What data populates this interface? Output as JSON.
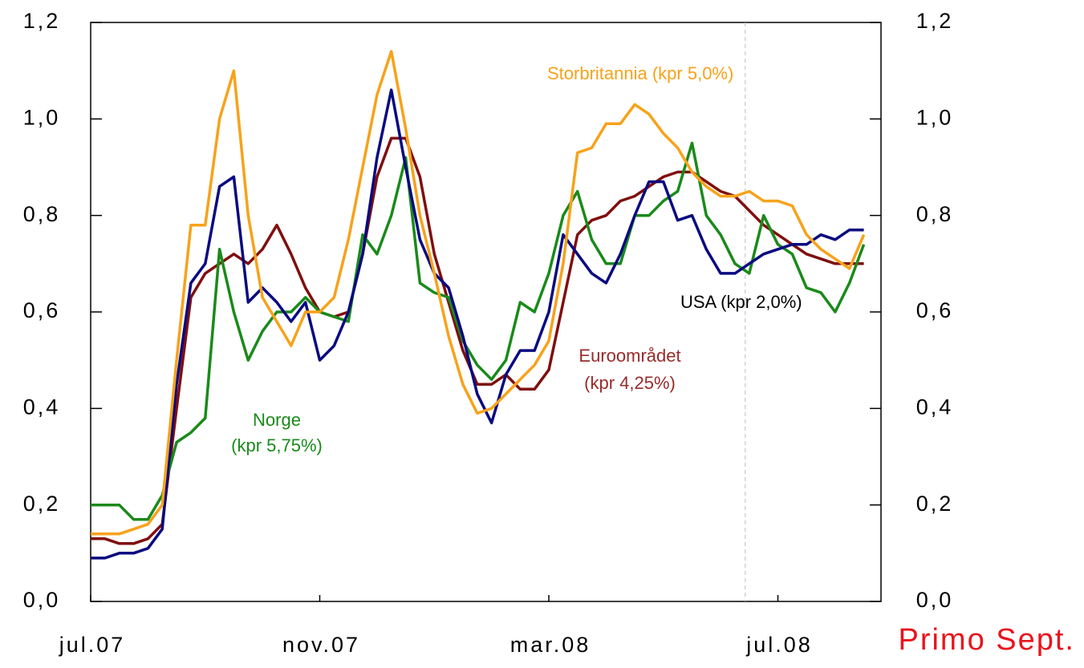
{
  "chart_data": {
    "type": "line",
    "annotation": "Primo Sept.",
    "xlim": [
      0,
      13.8
    ],
    "xticks": [
      {
        "value": 0,
        "label": "jul.07"
      },
      {
        "value": 4,
        "label": "nov.07"
      },
      {
        "value": 8,
        "label": "mar.08"
      },
      {
        "value": 12,
        "label": "jul.08"
      }
    ],
    "ylim": [
      0,
      1.2
    ],
    "yticks": [
      {
        "value": 0,
        "label": "0,0"
      },
      {
        "value": 0.2,
        "label": "0,2"
      },
      {
        "value": 0.4,
        "label": "0,4"
      },
      {
        "value": 0.6,
        "label": "0,6"
      },
      {
        "value": 0.8,
        "label": "0,8"
      },
      {
        "value": 1.0,
        "label": "1,0"
      },
      {
        "value": 1.2,
        "label": "1,2"
      }
    ],
    "y2lim": [
      0,
      1.2
    ],
    "y2ticks": [
      {
        "value": 0,
        "label": "0,0"
      },
      {
        "value": 0.2,
        "label": "0,2"
      },
      {
        "value": 0.4,
        "label": "0,4"
      },
      {
        "value": 0.6,
        "label": "0,6"
      },
      {
        "value": 0.8,
        "label": "0,8"
      },
      {
        "value": 1.0,
        "label": "1,0"
      },
      {
        "value": 1.2,
        "label": "1,2"
      }
    ],
    "reference_line_x": 11.43,
    "grid": false,
    "x": [
      0,
      0.25,
      0.5,
      0.75,
      1,
      1.25,
      1.5,
      1.75,
      2,
      2.25,
      2.5,
      2.75,
      3,
      3.25,
      3.5,
      3.75,
      4,
      4.25,
      4.5,
      4.75,
      5,
      5.25,
      5.5,
      5.75,
      6,
      6.25,
      6.5,
      6.75,
      7,
      7.25,
      7.5,
      7.75,
      8,
      8.25,
      8.5,
      8.75,
      9,
      9.25,
      9.5,
      9.75,
      10,
      10.25,
      10.5,
      10.75,
      11,
      11.25,
      11.5,
      11.75,
      12,
      12.25,
      12.5,
      12.75,
      13,
      13.25,
      13.5
    ],
    "series": [
      {
        "name": "USA",
        "label_lines": [
          "USA (kpr 2,0%)"
        ],
        "color": "#0a0a80",
        "label_color": "#000000",
        "values": [
          0.09,
          0.09,
          0.1,
          0.1,
          0.11,
          0.15,
          0.45,
          0.66,
          0.7,
          0.86,
          0.88,
          0.62,
          0.65,
          0.62,
          0.58,
          0.62,
          0.5,
          0.53,
          0.6,
          0.72,
          0.92,
          1.06,
          0.9,
          0.75,
          0.68,
          0.65,
          0.55,
          0.43,
          0.37,
          0.47,
          0.52,
          0.52,
          0.6,
          0.76,
          0.72,
          0.68,
          0.66,
          0.72,
          0.8,
          0.87,
          0.87,
          0.79,
          0.8,
          0.73,
          0.68,
          0.68,
          0.7,
          0.72,
          0.73,
          0.74,
          0.74,
          0.76,
          0.75,
          0.77,
          0.77
        ]
      },
      {
        "name": "Storbritannia",
        "label_lines": [
          "Storbritannia (kpr 5,0%)"
        ],
        "color": "#f7a21b",
        "label_color": "#f7a21b",
        "values": [
          0.14,
          0.14,
          0.14,
          0.15,
          0.16,
          0.2,
          0.5,
          0.78,
          0.78,
          1.0,
          1.1,
          0.8,
          0.63,
          0.58,
          0.53,
          0.6,
          0.6,
          0.63,
          0.75,
          0.9,
          1.05,
          1.14,
          0.98,
          0.8,
          0.68,
          0.55,
          0.45,
          0.39,
          0.4,
          0.43,
          0.46,
          0.49,
          0.54,
          0.7,
          0.93,
          0.94,
          0.99,
          0.99,
          1.03,
          1.01,
          0.97,
          0.94,
          0.89,
          0.86,
          0.84,
          0.84,
          0.85,
          0.83,
          0.83,
          0.82,
          0.76,
          0.73,
          0.71,
          0.69,
          0.76
        ]
      },
      {
        "name": "Euroområdet",
        "label_lines": [
          "Euroområdet",
          "(kpr 4,25%)"
        ],
        "color": "#7f0f0f",
        "label_color": "#9a2a2a",
        "values": [
          0.13,
          0.13,
          0.12,
          0.12,
          0.13,
          0.16,
          0.4,
          0.63,
          0.68,
          0.7,
          0.72,
          0.7,
          0.73,
          0.78,
          0.72,
          0.65,
          0.6,
          0.59,
          0.6,
          0.72,
          0.88,
          0.96,
          0.96,
          0.88,
          0.72,
          0.62,
          0.52,
          0.45,
          0.45,
          0.47,
          0.44,
          0.44,
          0.48,
          0.62,
          0.76,
          0.79,
          0.8,
          0.83,
          0.84,
          0.86,
          0.88,
          0.89,
          0.89,
          0.87,
          0.85,
          0.84,
          0.81,
          0.78,
          0.76,
          0.74,
          0.72,
          0.71,
          0.7,
          0.7,
          0.7
        ]
      },
      {
        "name": "Norge",
        "label_lines": [
          "Norge",
          "(kpr 5,75%)"
        ],
        "color": "#1a8a1a",
        "label_color": "#1a8a1a",
        "values": [
          0.2,
          0.2,
          0.2,
          0.17,
          0.17,
          0.22,
          0.33,
          0.35,
          0.38,
          0.73,
          0.6,
          0.5,
          0.56,
          0.6,
          0.6,
          0.63,
          0.6,
          0.59,
          0.58,
          0.76,
          0.72,
          0.8,
          0.92,
          0.66,
          0.64,
          0.63,
          0.54,
          0.49,
          0.46,
          0.5,
          0.62,
          0.6,
          0.68,
          0.8,
          0.85,
          0.75,
          0.7,
          0.7,
          0.8,
          0.8,
          0.83,
          0.85,
          0.95,
          0.8,
          0.76,
          0.7,
          0.68,
          0.8,
          0.74,
          0.72,
          0.65,
          0.64,
          0.6,
          0.66,
          0.74
        ]
      }
    ]
  }
}
